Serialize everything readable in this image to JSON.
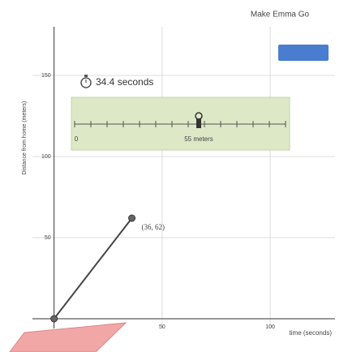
{
  "header": {
    "title": "Make Emma Go"
  },
  "timer": {
    "text": "34.4 seconds"
  },
  "slider": {
    "label": "55 meters",
    "min_label": "0"
  },
  "chart_data": {
    "type": "line",
    "x_label": "time (seconds)",
    "y_label": "Distance from home (meters)",
    "x": [
      0,
      36
    ],
    "values": [
      0,
      62
    ],
    "point_label": "(36, 62)",
    "color": "#444444",
    "xlim": [
      -10,
      130
    ],
    "ylim": [
      -6,
      180
    ],
    "xticks": [
      50,
      100
    ],
    "yticks": [
      50,
      100,
      150
    ],
    "grid": true
  }
}
